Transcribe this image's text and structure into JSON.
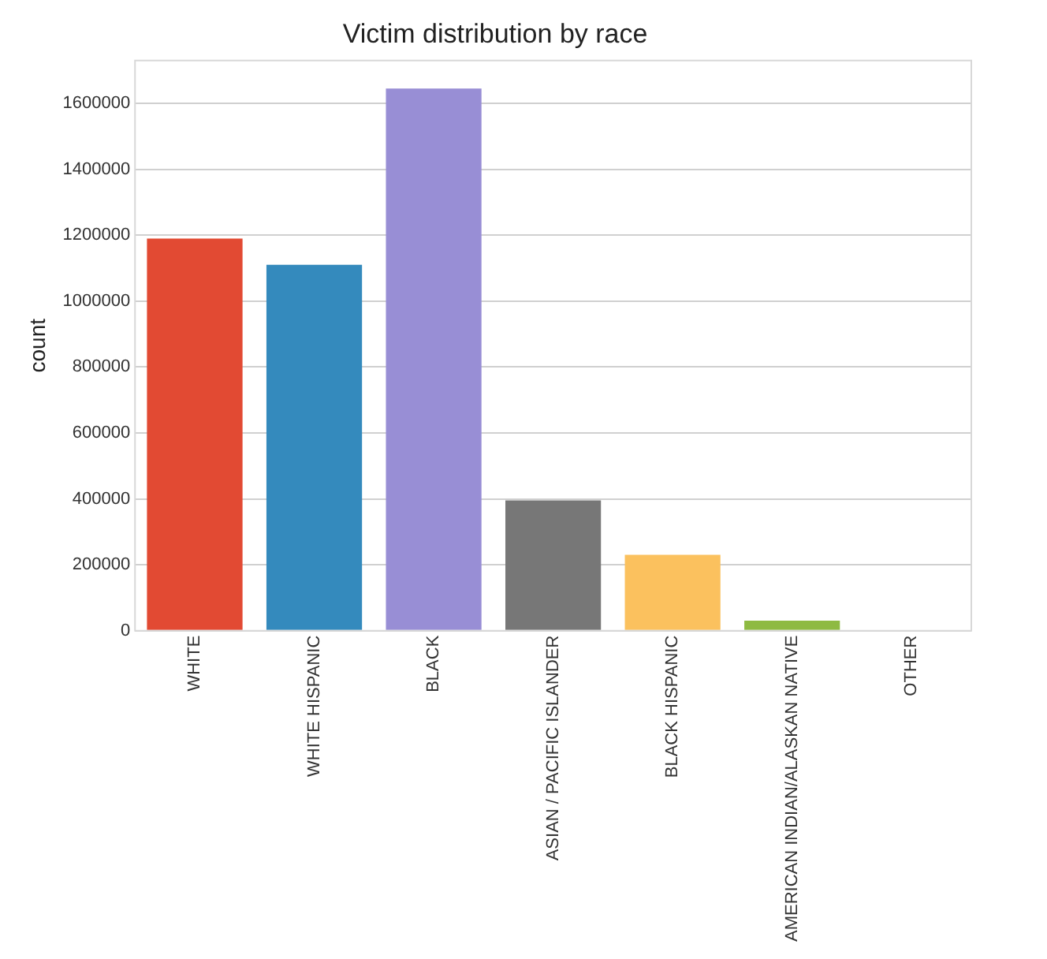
{
  "chart_data": {
    "type": "bar",
    "title": "Victim distribution by race",
    "ylabel": "count",
    "categories": [
      "WHITE",
      "WHITE HISPANIC",
      "BLACK",
      "ASIAN / PACIFIC ISLANDER",
      "BLACK HISPANIC",
      "AMERICAN INDIAN/ALASKAN NATIVE",
      "OTHER"
    ],
    "values": [
      1190000,
      1110000,
      1645000,
      395000,
      230000,
      30000,
      2000
    ],
    "colors": [
      "#e24a33",
      "#348abd",
      "#988ed5",
      "#777777",
      "#fbc15e",
      "#8eba42",
      "#ffb5b8"
    ],
    "ylim": [
      0,
      1730000
    ],
    "yticks": [
      0,
      200000,
      400000,
      600000,
      800000,
      1000000,
      1200000,
      1400000,
      1600000
    ],
    "grid": "y",
    "legend": false
  }
}
